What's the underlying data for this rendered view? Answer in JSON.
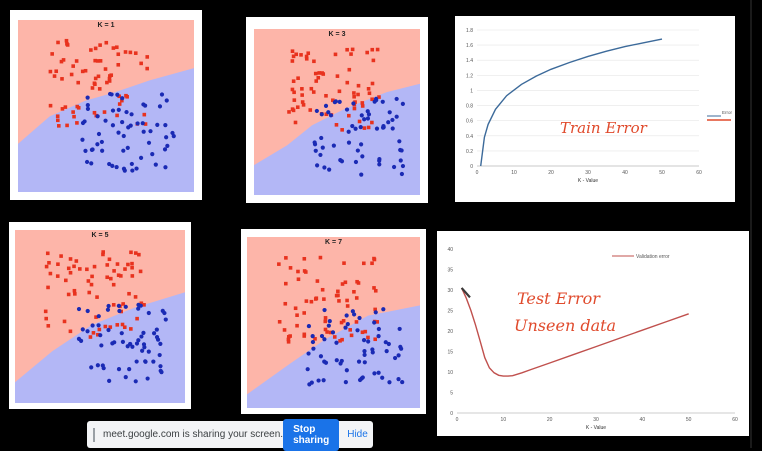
{
  "knn_panels": [
    {
      "title": "K = 1"
    },
    {
      "title": "K = 3"
    },
    {
      "title": "K = 5"
    },
    {
      "title": "K = 7"
    }
  ],
  "colors": {
    "red_region": "#fdb5a9",
    "blue_region": "#b3b7f6",
    "red_points": "#e8321e",
    "blue_points": "#1a2ab4",
    "train_line": "#3c6a9a",
    "val_line": "#c0504d",
    "annotation_ink": "#e04a2c",
    "share_button": "#1a73e8"
  },
  "annotations": {
    "train": "Train Error",
    "test_line1": "Test Error",
    "test_line2": "Unseen data"
  },
  "chart_data": [
    {
      "type": "line",
      "xlabel": "K - Value",
      "ylabel": "",
      "xlim": [
        0,
        60
      ],
      "ylim": [
        0,
        1.8
      ],
      "x_ticks": [
        "0",
        "10",
        "20",
        "30",
        "40",
        "50",
        "60"
      ],
      "y_ticks": [
        "0",
        "0.2",
        "0.4",
        "0.6",
        "0.8",
        "1",
        "1.2",
        "1.4",
        "1.6",
        "1.8"
      ],
      "legend_position": "right",
      "series": [
        {
          "name": "Error",
          "x": [
            1,
            2,
            3,
            5,
            8,
            12,
            16,
            20,
            25,
            30,
            35,
            40,
            45,
            50
          ],
          "values": [
            0,
            0.38,
            0.55,
            0.75,
            0.93,
            1.08,
            1.19,
            1.28,
            1.37,
            1.45,
            1.52,
            1.58,
            1.63,
            1.68
          ]
        }
      ]
    },
    {
      "type": "line",
      "xlabel": "K - Value",
      "ylabel": "",
      "xlim": [
        0,
        60
      ],
      "ylim": [
        0,
        40
      ],
      "x_ticks": [
        "0",
        "10",
        "20",
        "30",
        "40",
        "50",
        "60"
      ],
      "y_ticks": [
        "0",
        "5",
        "10",
        "15",
        "20",
        "25",
        "30",
        "35",
        "40"
      ],
      "legend_position": "top",
      "series": [
        {
          "name": "Validation error",
          "x": [
            1,
            2,
            3,
            4,
            5,
            6,
            7,
            8,
            9,
            10,
            11,
            12,
            14,
            16,
            20,
            25,
            30,
            35,
            40,
            45,
            50
          ],
          "values": [
            30.5,
            28,
            25,
            21.5,
            17.5,
            13.5,
            11,
            9.8,
            9.2,
            9,
            9,
            9.1,
            9.8,
            10.6,
            12.2,
            14.2,
            16.2,
            18.2,
            20.2,
            22.2,
            24.2
          ]
        }
      ]
    }
  ],
  "share_bar": {
    "message": "meet.google.com is sharing your screen.",
    "stop_label": "Stop sharing",
    "hide_label": "Hide"
  }
}
